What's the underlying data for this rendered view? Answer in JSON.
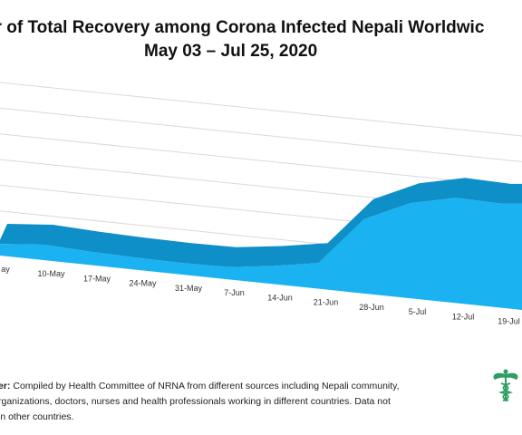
{
  "title": {
    "line1": "er of Total Recovery among Corona Infected Nepali Worldwic",
    "line2": "May 03 – Jul 25, 2020"
  },
  "chart_data": {
    "type": "area",
    "categories": [
      "ay",
      "10-May",
      "17-May",
      "24-May",
      "31-May",
      "7-Jun",
      "14-Jun",
      "21-Jun",
      "28-Jun",
      "5-Jul",
      "12-Jul",
      "19-Jul"
    ],
    "series": [
      {
        "values": [
          45,
          60,
          52,
          47,
          45,
          47,
          70,
          100,
          290,
          370,
          410,
          405
        ]
      }
    ],
    "ylim": [
      0,
      600
    ],
    "grid": true,
    "color": "#1ab2f0"
  },
  "disclaimer": {
    "label": "er:",
    "line1": " Compiled by Health Committee of NRNA from different sources including Nepali community,",
    "line2": "rganizations, doctors, nurses and health professionals working in different countries. Data not",
    "line3": "in other countries."
  },
  "logo": {
    "icon": "caduceus-icon",
    "color": "#2e9e63"
  }
}
